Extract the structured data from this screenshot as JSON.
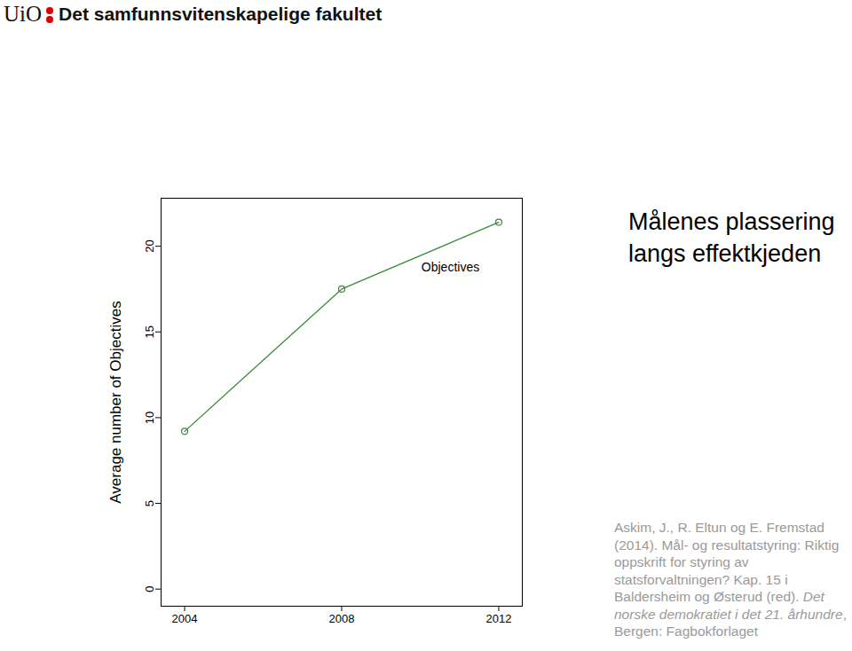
{
  "header": {
    "logo": "UiO",
    "name": "Det samfunnsvitenskapelige fakultet"
  },
  "caption": [
    "Askim, J., R. Eltun og E. Fremstad (2014). Mål- og resultatstyring: Riktig oppskrift for styring av statsforvaltningen? Kap. 15 i Baldersheim og Østerud (red). ",
    "Det norske demokratiet i det 21. århundre",
    ", Bergen: Fagbokforlaget"
  ],
  "chart_data": {
    "type": "line",
    "title": "Målenes plassering langs effektkjeden",
    "y_label": "Average number of Objectives",
    "x": [
      2004,
      2008,
      2012
    ],
    "series": [
      {
        "name": "Objectives",
        "color": "#3b8a3b",
        "values": [
          9.2,
          17.5,
          21.4
        ],
        "marker": "circle"
      }
    ],
    "xlim": [
      2003.4,
      2012.6
    ],
    "xticks": [
      2004,
      2008,
      2012
    ],
    "ylim": [
      -1,
      22.8
    ],
    "yticks": [
      0,
      5,
      10,
      15,
      20
    ],
    "grid": false
  }
}
